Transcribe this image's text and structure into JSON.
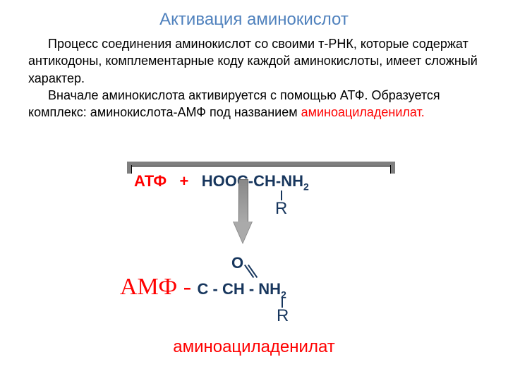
{
  "title": {
    "text": "Активация аминокислот",
    "color": "#4f81bd"
  },
  "paragraph": {
    "line1": "Процесс соединения аминокислот со своими т-РНК, которые содержат антикодоны, комплементарные  коду  каждой аминокислоты,  имеет сложный характер.",
    "line2": "Вначале аминокислота активируется с помощью АТФ. Образуется комплекс: аминокислота-АМФ   под названием ",
    "term": "аминоациладенилат.",
    "text_color": "#000000",
    "term_color": "#ff0000"
  },
  "reaction": {
    "reactant1": "АТФ",
    "plus": "+",
    "reactant2_a": "НООС-СН-",
    "reactant2_b": "NH",
    "reactant2_sub": "2",
    "r_group": "R",
    "atp_color": "#ff0000",
    "formula_color": "#17365d"
  },
  "product": {
    "oxygen": "О",
    "amf": "АМФ - ",
    "formula_a": "С - СН - NH",
    "formula_sub": "2",
    "r_group": "R",
    "name": "аминоациладенилат",
    "amf_color": "#ff0000",
    "formula_color": "#17365d",
    "name_color": "#ff0000"
  }
}
